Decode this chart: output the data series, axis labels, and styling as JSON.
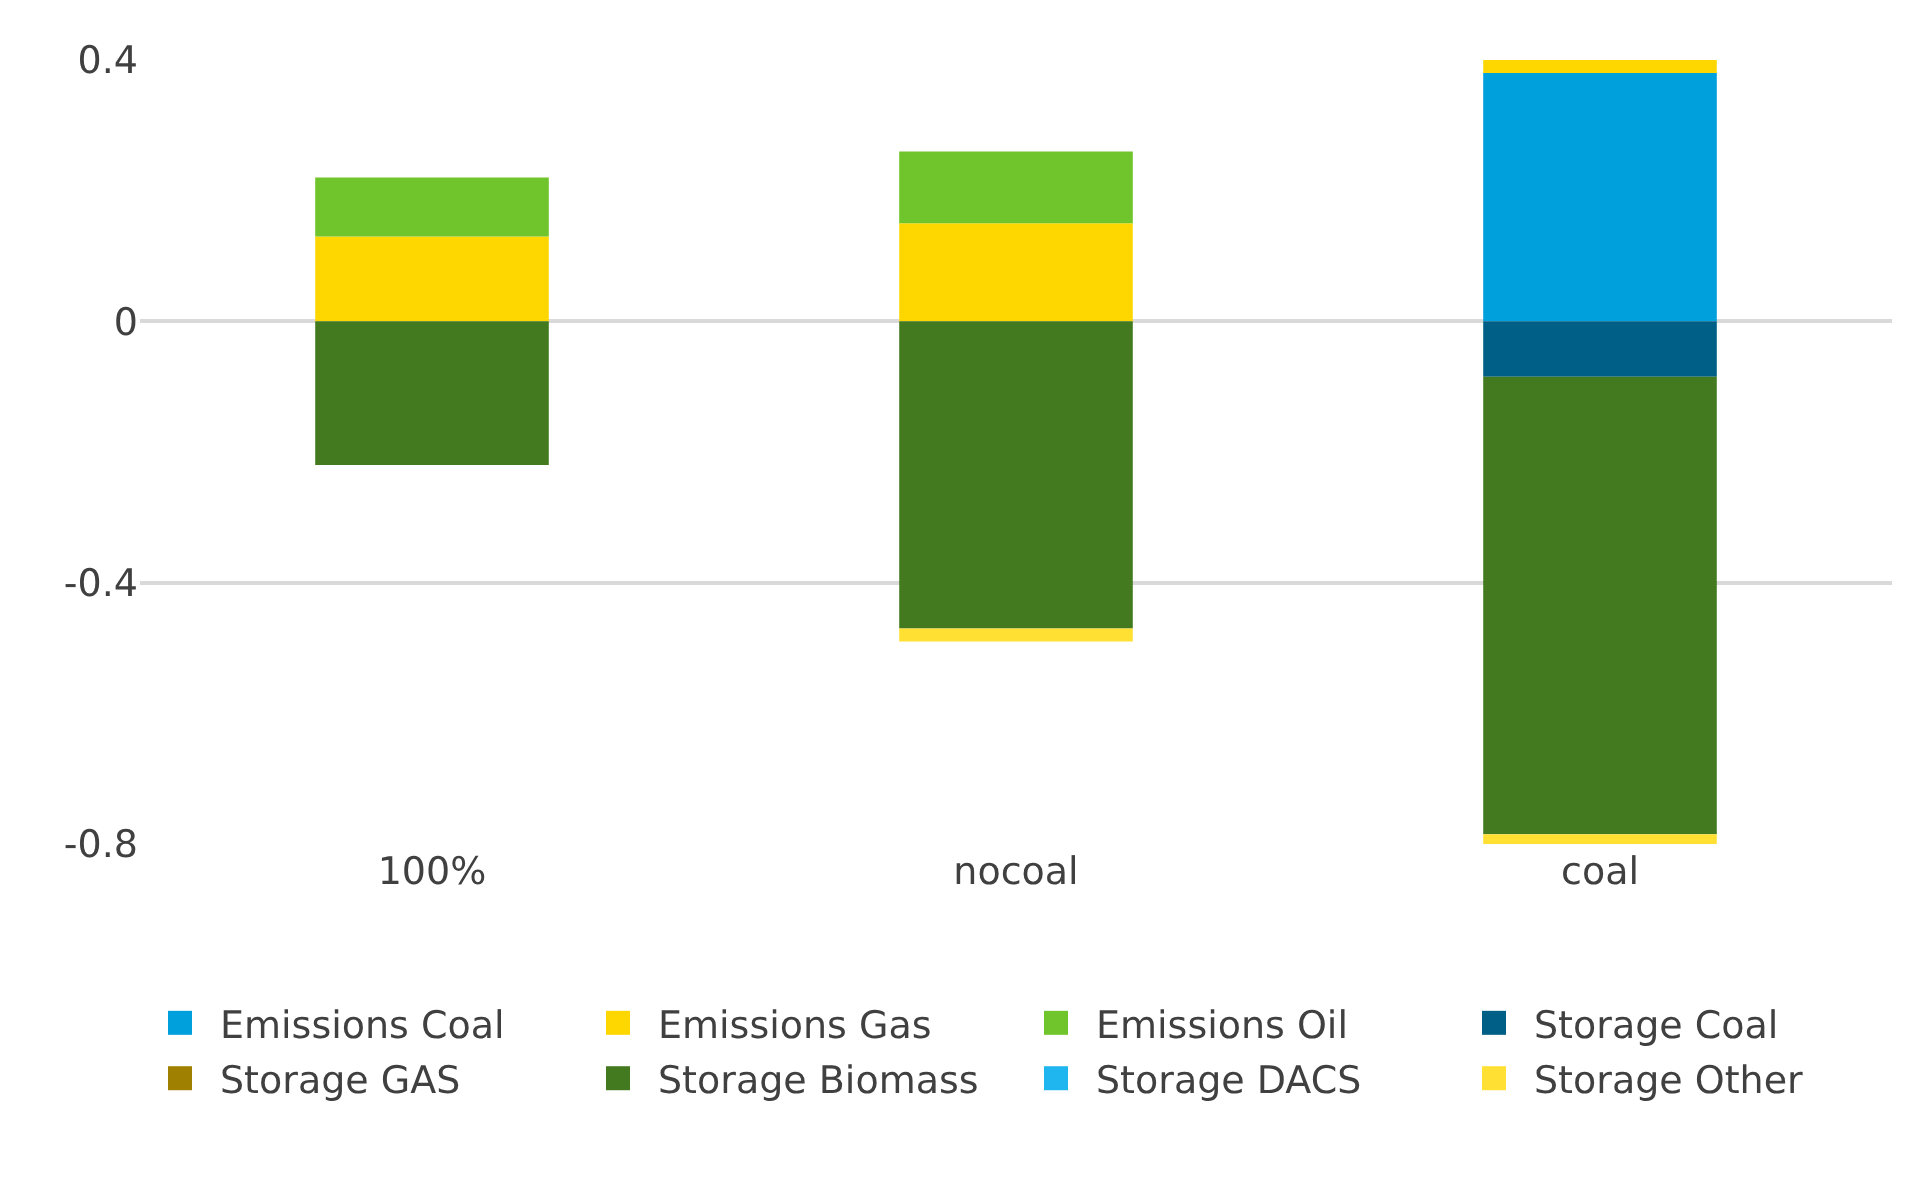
{
  "chart_data": {
    "type": "bar",
    "stacked": true,
    "categories": [
      "100%",
      "nocoal",
      "coal"
    ],
    "series": [
      {
        "name": "Emissions Coal",
        "color": "#00a0dc",
        "values": [
          null,
          null,
          0.38
        ]
      },
      {
        "name": "Emissions Gas",
        "color": "#ffd700",
        "values": [
          0.13,
          0.15,
          0.02
        ]
      },
      {
        "name": "Emissions Oil",
        "color": "#70c52c",
        "values": [
          0.09,
          0.11,
          null
        ]
      },
      {
        "name": "Storage Coal",
        "color": "#005f86",
        "values": [
          null,
          null,
          -0.085
        ]
      },
      {
        "name": "Storage GAS",
        "color": "#a08000",
        "values": [
          null,
          null,
          null
        ]
      },
      {
        "name": "Storage Biomass",
        "color": "#437a1f",
        "values": [
          -0.22,
          -0.47,
          -0.7
        ]
      },
      {
        "name": "Storage DACS",
        "color": "#1fb6ef",
        "values": [
          null,
          null,
          null
        ]
      },
      {
        "name": "Storage Other",
        "color": "#ffe033",
        "values": [
          null,
          -0.02,
          -0.015
        ]
      }
    ],
    "ylim": [
      -0.8,
      0.4
    ],
    "yticks": [
      -0.8,
      -0.4,
      0,
      0.4
    ],
    "grid": "y",
    "legend": "bottom"
  }
}
